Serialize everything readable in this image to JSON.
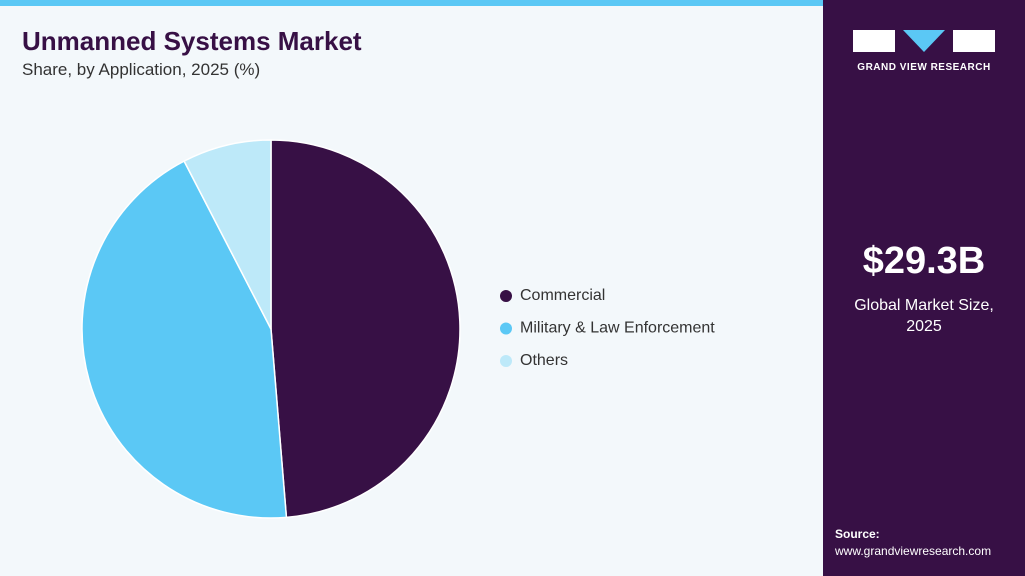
{
  "chart_data": {
    "type": "pie",
    "title": "Unmanned Systems Market",
    "subtitle": "Share, by Application, 2025 (%)",
    "categories": [
      "Commercial",
      "Military & Law Enforcement",
      "Others"
    ],
    "values": [
      48.7,
      43.7,
      7.6
    ],
    "colors": [
      "#371045",
      "#5bc8f5",
      "#bde9f9"
    ],
    "legend": "right"
  },
  "sidebar": {
    "brand": "GRAND VIEW RESEARCH",
    "market_size": "$29.3B",
    "market_size_label": "Global Market Size, 2025",
    "source_label": "Source:",
    "source_url": "www.grandviewresearch.com"
  }
}
